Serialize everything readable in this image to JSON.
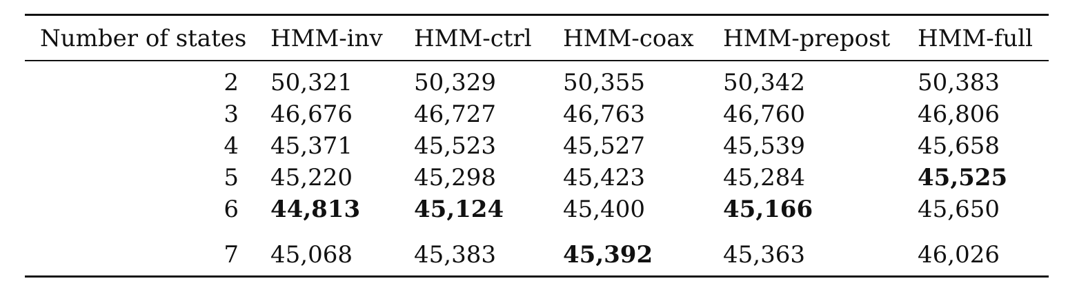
{
  "table": {
    "headers": [
      "Number of states",
      "HMM-inv",
      "HMM-ctrl",
      "HMM-coax",
      "HMM-prepost",
      "HMM-full"
    ],
    "rows": [
      {
        "state": "2",
        "values": [
          "50,321",
          "50,329",
          "50,355",
          "50,342",
          "50,383"
        ],
        "bold": [
          false,
          false,
          false,
          false,
          false
        ]
      },
      {
        "state": "3",
        "values": [
          "46,676",
          "46,727",
          "46,763",
          "46,760",
          "46,806"
        ],
        "bold": [
          false,
          false,
          false,
          false,
          false
        ]
      },
      {
        "state": "4",
        "values": [
          "45,371",
          "45,523",
          "45,527",
          "45,539",
          "45,658"
        ],
        "bold": [
          false,
          false,
          false,
          false,
          false
        ]
      },
      {
        "state": "5",
        "values": [
          "45,220",
          "45,298",
          "45,423",
          "45,284",
          "45,525"
        ],
        "bold": [
          false,
          false,
          false,
          false,
          true
        ]
      },
      {
        "state": "6",
        "values": [
          "44,813",
          "45,124",
          "45,400",
          "45,166",
          "45,650"
        ],
        "bold": [
          true,
          true,
          false,
          true,
          false
        ]
      },
      {
        "state": "7",
        "values": [
          "45,068",
          "45,383",
          "45,392",
          "45,363",
          "46,026"
        ],
        "bold": [
          false,
          false,
          true,
          false,
          false
        ]
      }
    ]
  }
}
